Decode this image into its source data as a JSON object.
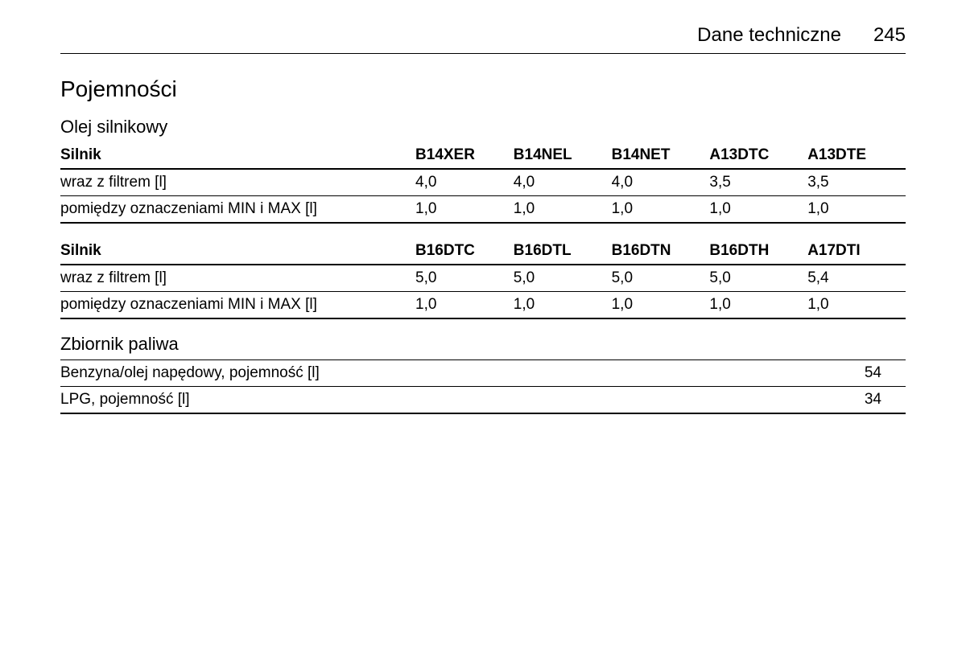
{
  "header": {
    "title": "Dane techniczne",
    "page_number": "245"
  },
  "section_title": "Pojemności",
  "oil_section": {
    "title": "Olej silnikowy",
    "table1": {
      "row_header_label": "Silnik",
      "columns": [
        "B14XER",
        "B14NEL",
        "B14NET",
        "A13DTC",
        "A13DTE"
      ],
      "rows": [
        {
          "label": "wraz z filtrem [l]",
          "values": [
            "4,0",
            "4,0",
            "4,0",
            "3,5",
            "3,5"
          ]
        },
        {
          "label": "pomiędzy oznaczeniami MIN i MAX [l]",
          "values": [
            "1,0",
            "1,0",
            "1,0",
            "1,0",
            "1,0"
          ]
        }
      ]
    },
    "table2": {
      "row_header_label": "Silnik",
      "columns": [
        "B16DTC",
        "B16DTL",
        "B16DTN",
        "B16DTH",
        "A17DTI"
      ],
      "rows": [
        {
          "label": "wraz z filtrem [l]",
          "values": [
            "5,0",
            "5,0",
            "5,0",
            "5,0",
            "5,4"
          ]
        },
        {
          "label": "pomiędzy oznaczeniami MIN i MAX [l]",
          "values": [
            "1,0",
            "1,0",
            "1,0",
            "1,0",
            "1,0"
          ]
        }
      ]
    }
  },
  "fuel_section": {
    "title": "Zbiornik paliwa",
    "rows": [
      {
        "label": "Benzyna/olej napędowy, pojemność [l]",
        "value": "54"
      },
      {
        "label": "LPG, pojemność [l]",
        "value": "34"
      }
    ]
  },
  "styling": {
    "background_color": "#ffffff",
    "text_color": "#000000",
    "border_color": "#000000",
    "font_family": "Arial",
    "header_fontsize": 24,
    "section_title_fontsize": 28,
    "subsection_title_fontsize": 22,
    "body_fontsize": 19
  }
}
